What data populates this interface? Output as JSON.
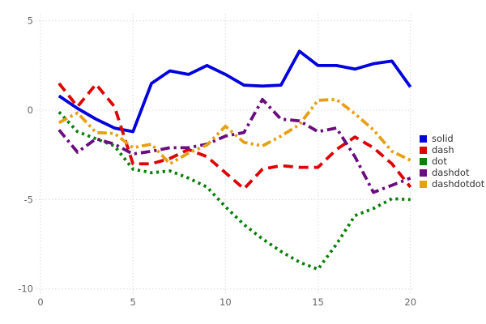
{
  "chart_data": {
    "type": "line",
    "title": "",
    "xlabel": "",
    "ylabel": "",
    "xlim": [
      0,
      20
    ],
    "ylim": [
      -10,
      5
    ],
    "xticks": [
      0,
      5,
      10,
      15,
      20
    ],
    "yticks": [
      -10,
      -5,
      0,
      5
    ],
    "grid": "dotted",
    "grid_color": "#d9d9d9",
    "tick_color": "#666666",
    "legend_position": "right",
    "x": [
      1,
      2,
      3,
      4,
      5,
      6,
      7,
      8,
      9,
      10,
      11,
      12,
      13,
      14,
      15,
      16,
      17,
      18,
      19,
      20
    ],
    "series": [
      {
        "name": "solid",
        "color": "#0202dd",
        "dash_style": "solid",
        "values": [
          0.8,
          0.1,
          -0.5,
          -1.0,
          -1.2,
          1.5,
          2.2,
          2.0,
          2.5,
          2.0,
          1.4,
          1.35,
          1.4,
          3.3,
          2.5,
          2.5,
          2.3,
          2.6,
          2.75,
          1.3
        ]
      },
      {
        "name": "dash",
        "color": "#dd0404",
        "dash_style": "dash",
        "values": [
          1.5,
          0.2,
          1.45,
          0.2,
          -3.0,
          -3.0,
          -2.7,
          -2.2,
          -2.6,
          -3.5,
          -4.4,
          -3.3,
          -3.1,
          -3.2,
          -3.2,
          -2.2,
          -1.5,
          -2.1,
          -3.0,
          -4.3
        ]
      },
      {
        "name": "dot",
        "color": "#0a7f0a",
        "dash_style": "dot",
        "values": [
          -0.1,
          -1.2,
          -1.6,
          -2.0,
          -3.3,
          -3.5,
          -3.4,
          -3.8,
          -4.3,
          -5.4,
          -6.4,
          -7.2,
          -7.9,
          -8.5,
          -8.9,
          -7.5,
          -5.9,
          -5.5,
          -4.95,
          -5.0
        ]
      },
      {
        "name": "dashdot",
        "color": "#6a0d7d",
        "dash_style": "dashdot",
        "values": [
          -1.1,
          -2.35,
          -1.6,
          -1.9,
          -2.45,
          -2.3,
          -2.1,
          -2.1,
          -1.9,
          -1.45,
          -1.25,
          0.6,
          -0.5,
          -0.6,
          -1.2,
          -1.0,
          -2.6,
          -4.6,
          -4.2,
          -3.8
        ]
      },
      {
        "name": "dashdotdot",
        "color": "#e6a017",
        "dash_style": "dashdotdot",
        "values": [
          -0.7,
          -0.15,
          -1.25,
          -1.3,
          -2.1,
          -1.9,
          -3.0,
          -2.4,
          -1.95,
          -0.9,
          -1.8,
          -2.0,
          -1.45,
          -0.8,
          0.55,
          0.6,
          -0.2,
          -1.1,
          -2.3,
          -2.8
        ]
      }
    ]
  }
}
